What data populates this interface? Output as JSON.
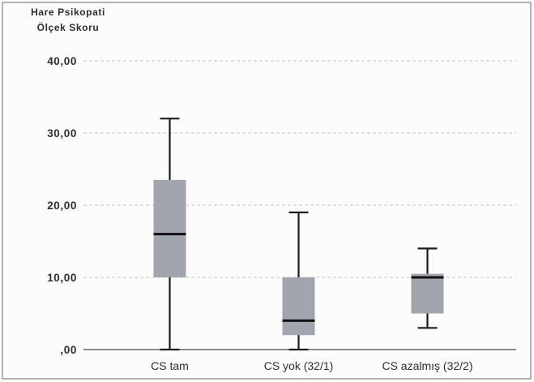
{
  "chart_data": {
    "type": "box",
    "ylabel_lines": [
      "Hare Psikopati",
      "Ölçek Skoru"
    ],
    "xlabel": "",
    "categories": [
      "CS tam",
      "CS yok (32/1)",
      "CS azalmış (32/2)"
    ],
    "boxes": [
      {
        "min": 0,
        "q1": 10,
        "median": 16,
        "q3": 23.5,
        "max": 32
      },
      {
        "min": 0,
        "q1": 2,
        "median": 4,
        "q3": 10,
        "max": 19
      },
      {
        "min": 3,
        "q1": 5,
        "median": 10,
        "q3": 10.5,
        "max": 14
      }
    ],
    "ylim": [
      0,
      40
    ],
    "yticks": [
      0,
      10,
      20,
      30,
      40
    ],
    "ytick_labels": [
      ",00",
      "10,00",
      "20,00",
      "30,00",
      "40,00"
    ],
    "grid": true,
    "legend": "none"
  },
  "colors": {
    "box_fill": "#a3a5ae",
    "median": "#111111",
    "whisker": "#1c1c1c",
    "grid": "#c6c6c6",
    "axis": "#4a4a4a",
    "text": "#2e2e2e",
    "frame": "#9a9a9a",
    "background": "#fcfcfc"
  }
}
